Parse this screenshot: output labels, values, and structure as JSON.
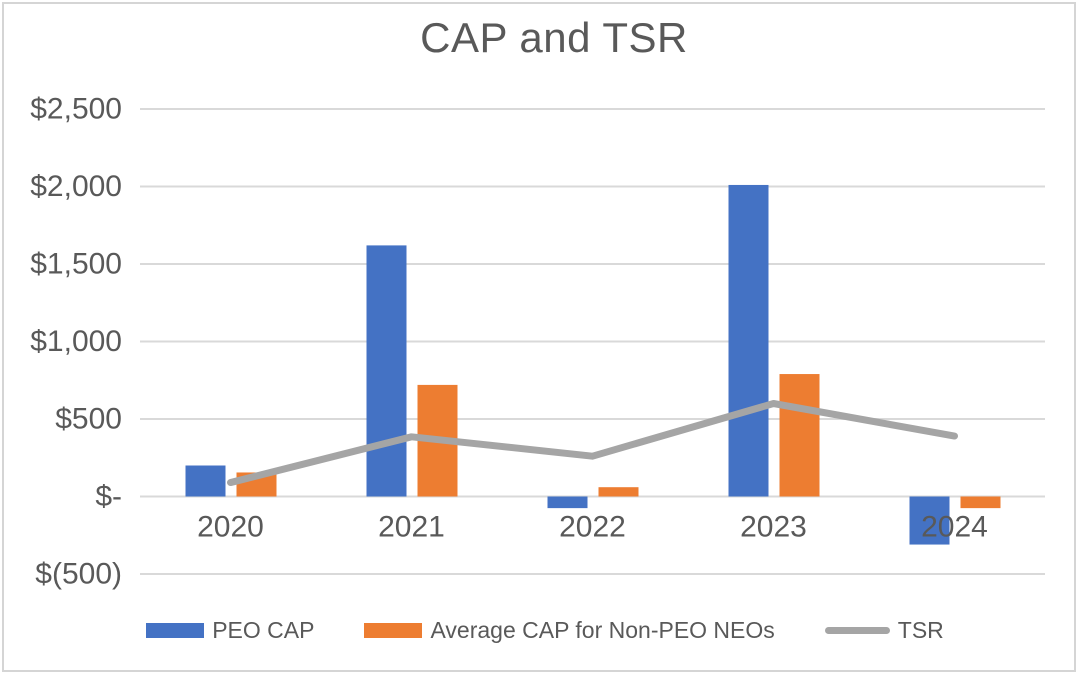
{
  "window": {
    "background": "#ffffff",
    "border_color": "#d5d5d5"
  },
  "chart_data": {
    "type": "combo",
    "title": "CAP and TSR",
    "categories": [
      "2020",
      "2021",
      "2022",
      "2023",
      "2024"
    ],
    "series": [
      {
        "name": "PEO CAP",
        "chart_type": "bar",
        "color": "#4472C4",
        "values": [
          200,
          1620,
          -75,
          2010,
          -310
        ]
      },
      {
        "name": "Average CAP for Non-PEO NEOs",
        "chart_type": "bar",
        "color": "#ED7D31",
        "values": [
          155,
          720,
          60,
          790,
          -75
        ]
      },
      {
        "name": "TSR",
        "chart_type": "line",
        "color": "#A5A5A5",
        "values": [
          90,
          385,
          260,
          600,
          390
        ]
      }
    ],
    "y_axis": {
      "min": -500,
      "max": 2500,
      "step": 500,
      "tick_labels": [
        "$(500)",
        "$-",
        "$500",
        "$1,000",
        "$1,500",
        "$2,000",
        "$2,500"
      ]
    },
    "x_axis": {
      "label": ""
    },
    "grid": true,
    "gridline_color": "#D9D9D9",
    "text_color": "#595959",
    "legend_position": "bottom"
  }
}
